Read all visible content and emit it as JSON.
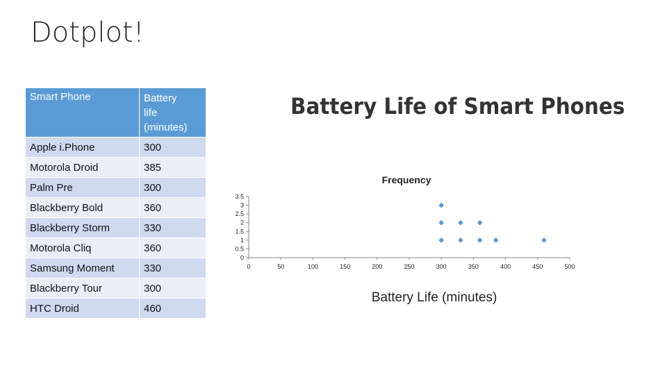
{
  "slide": {
    "title": "Dotplot!"
  },
  "table": {
    "headers": [
      "Smart Phone",
      "Battery life (minutes)"
    ],
    "header_lines": [
      "Battery",
      "life",
      "(minutes)"
    ],
    "rows": [
      [
        "Apple i.Phone",
        "300"
      ],
      [
        "Motorola Droid",
        "385"
      ],
      [
        "Palm Pre",
        "300"
      ],
      [
        "Blackberry Bold",
        "360"
      ],
      [
        "Blackberry Storm",
        "330"
      ],
      [
        "Motorola Cliq",
        "360"
      ],
      [
        "Samsung Moment",
        "330"
      ],
      [
        "Blackberry Tour",
        "300"
      ],
      [
        "HTC Droid",
        "460"
      ]
    ]
  },
  "chart_data": {
    "type": "scatter",
    "title": "Battery Life of Smart Phones",
    "xlabel": "Battery Life (minutes)",
    "ylabel": "Frequency",
    "xlim": [
      0,
      500
    ],
    "ylim": [
      0,
      3.5
    ],
    "xticks": [
      "0",
      "50",
      "100",
      "150",
      "200",
      "250",
      "300",
      "350",
      "400",
      "450",
      "500"
    ],
    "yticks": [
      "0",
      "0.5",
      "1",
      "1.5",
      "2",
      "2.5",
      "3",
      "3.5"
    ],
    "grid": false,
    "marker_color": "#5b9bd5",
    "points": [
      {
        "x": 300,
        "y": 1
      },
      {
        "x": 300,
        "y": 2
      },
      {
        "x": 300,
        "y": 3
      },
      {
        "x": 330,
        "y": 1
      },
      {
        "x": 330,
        "y": 2
      },
      {
        "x": 360,
        "y": 1
      },
      {
        "x": 360,
        "y": 2
      },
      {
        "x": 385,
        "y": 1
      },
      {
        "x": 460,
        "y": 1
      }
    ]
  }
}
